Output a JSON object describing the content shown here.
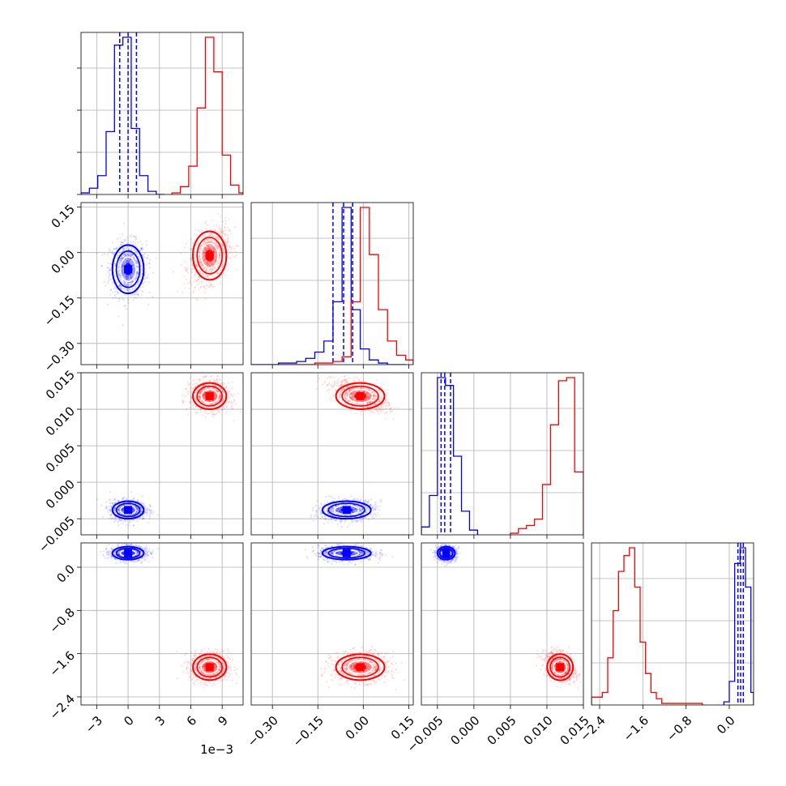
{
  "chart_data": {
    "type": "corner",
    "colors": {
      "blue": "#0000ff",
      "red": "#ff0000",
      "grid": "#b0b0b0",
      "frame": "#000000"
    },
    "legend": "none",
    "grid": true,
    "variables": [
      {
        "range": [
          -4.5,
          11
        ],
        "ticks": [
          -3,
          0,
          3,
          6,
          9
        ],
        "tick_labels": [
          "−3",
          "0",
          "3",
          "6",
          "9"
        ],
        "offset_text": "1e−3"
      },
      {
        "range": [
          -0.37,
          0.165
        ],
        "ticks": [
          -0.3,
          -0.15,
          0.0,
          0.15
        ],
        "tick_labels": [
          "−0.30",
          "−0.15",
          "0.00",
          "0.15"
        ]
      },
      {
        "range": [
          -0.0072,
          0.015
        ],
        "ticks": [
          -0.005,
          0.0,
          0.005,
          0.01,
          0.015
        ],
        "tick_labels": [
          "−0.005",
          "0.000",
          "0.005",
          "0.010",
          "0.015"
        ]
      },
      {
        "range": [
          -2.55,
          0.45
        ],
        "ticks": [
          -2.4,
          -1.6,
          -0.8,
          0.0
        ],
        "tick_labels": [
          "−2.4",
          "−1.6",
          "−0.8",
          "0.0"
        ]
      }
    ],
    "series": [
      {
        "color": "blue",
        "center": [
          0.0,
          -0.055,
          -0.0038,
          0.26
        ],
        "sigma": [
          0.75,
          0.04,
          0.0006,
          0.06
        ],
        "quantiles": [
          [
            -0.8,
            0.0,
            0.8
          ],
          [
            -0.1,
            -0.065,
            -0.035
          ],
          [
            -0.0045,
            -0.004,
            -0.0032
          ],
          [
            0.16,
            0.21,
            0.26
          ]
        ],
        "histograms": [
          {
            "edges": [
              -4.5,
              -3.7,
              -2.9,
              -2.1,
              -1.3,
              -0.5,
              0.3,
              1.1,
              1.9,
              2.7,
              3.5
            ],
            "counts": [
              1,
              4,
              12,
              40,
              95,
              100,
              42,
              12,
              2,
              0
            ]
          },
          {
            "edges": [
              -0.37,
              -0.34,
              -0.31,
              -0.28,
              -0.25,
              -0.22,
              -0.19,
              -0.16,
              -0.13,
              -0.1,
              -0.07,
              -0.04,
              -0.01,
              0.02,
              0.05,
              0.08,
              0.11,
              0.14
            ],
            "counts": [
              0,
              0,
              0,
              1,
              1,
              2,
              4,
              8,
              15,
              40,
              100,
              35,
              10,
              3,
              1,
              0,
              0
            ]
          },
          {
            "edges": [
              -0.0072,
              -0.0061,
              -0.005,
              -0.0039,
              -0.0028,
              -0.0017,
              -0.0006,
              0.0005
            ],
            "counts": [
              5,
              25,
              100,
              95,
              50,
              15,
              3
            ]
          },
          {
            "edges": [
              -0.1,
              0.0,
              0.1,
              0.2,
              0.3,
              0.4,
              0.45
            ],
            "counts": [
              2,
              15,
              90,
              100,
              75,
              8
            ]
          }
        ]
      },
      {
        "color": "red",
        "center": [
          7.8,
          -0.01,
          0.0118,
          -1.85
        ],
        "sigma": [
          0.8,
          0.04,
          0.0009,
          0.12
        ],
        "quantiles": [],
        "histograms": [
          {
            "edges": [
              4.2,
              5.0,
              5.8,
              6.6,
              7.4,
              8.2,
              9.0,
              9.8,
              10.6,
              11.0
            ],
            "counts": [
              1,
              5,
              18,
              55,
              100,
              78,
              25,
              6,
              1
            ]
          },
          {
            "edges": [
              -0.28,
              -0.25,
              -0.22,
              -0.19,
              -0.16,
              -0.13,
              -0.1,
              -0.07,
              -0.04,
              -0.01,
              0.02,
              0.05,
              0.08,
              0.11,
              0.14,
              0.165
            ],
            "counts": [
              0,
              0,
              0,
              0,
              1,
              1,
              2,
              5,
              40,
              100,
              70,
              35,
              15,
              6,
              3
            ]
          },
          {
            "edges": [
              0.005,
              0.0061,
              0.0072,
              0.0083,
              0.0094,
              0.0105,
              0.0116,
              0.0127,
              0.0138,
              0.015
            ],
            "counts": [
              1,
              4,
              6,
              10,
              32,
              70,
              98,
              100,
              40
            ]
          },
          {
            "edges": [
              -2.55,
              -2.45,
              -2.35,
              -2.25,
              -2.15,
              -2.05,
              -1.95,
              -1.85,
              -1.75,
              -1.65,
              -1.55,
              -1.45,
              -1.35,
              -1.25,
              -0.5
            ],
            "counts": [
              5,
              5,
              8,
              30,
              60,
              85,
              95,
              100,
              75,
              40,
              20,
              8,
              4,
              1
            ]
          }
        ]
      }
    ]
  }
}
